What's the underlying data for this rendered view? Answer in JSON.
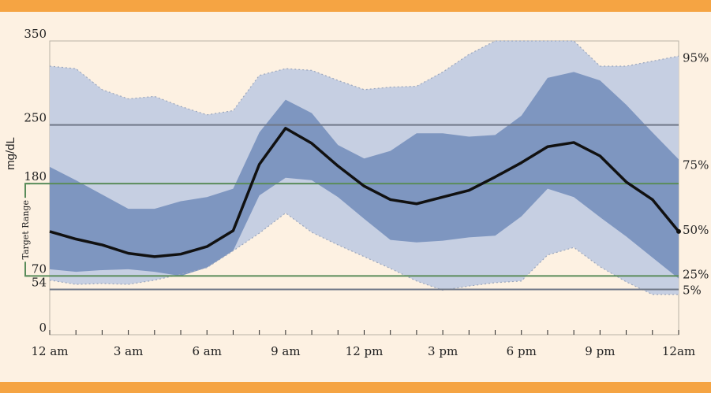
{
  "chart_data": {
    "type": "area",
    "ylabel": "mg/dL",
    "ylim": [
      0,
      350
    ],
    "x": [
      0,
      1,
      2,
      3,
      4,
      5,
      6,
      7,
      8,
      9,
      10,
      11,
      12,
      13,
      14,
      15,
      16,
      17,
      18,
      19,
      20,
      21,
      22,
      23,
      24
    ],
    "x_ticks": [
      {
        "x": 0,
        "label": "12 am"
      },
      {
        "x": 3,
        "label": "3 am"
      },
      {
        "x": 6,
        "label": "6 am"
      },
      {
        "x": 9,
        "label": "9 am"
      },
      {
        "x": 12,
        "label": "12 pm"
      },
      {
        "x": 15,
        "label": "3 pm"
      },
      {
        "x": 18,
        "label": "6 pm"
      },
      {
        "x": 21,
        "label": "9 pm"
      },
      {
        "x": 24,
        "label": "12am"
      }
    ],
    "y_ticks": [
      0,
      54,
      70,
      180,
      250,
      350
    ],
    "reference_lines": [
      {
        "y": 250,
        "color": "#707888"
      },
      {
        "y": 180,
        "color": "#5a8c5a"
      },
      {
        "y": 70,
        "color": "#5a8c5a"
      },
      {
        "y": 54,
        "color": "#707888"
      }
    ],
    "target_range": {
      "label": "Target Range",
      "low": 70,
      "high": 180
    },
    "percentile_labels": [
      {
        "label": "95%",
        "y": 330
      },
      {
        "label": "75%",
        "y": 202
      },
      {
        "label": "50%",
        "y": 125
      },
      {
        "label": "25%",
        "y": 72
      },
      {
        "label": "5%",
        "y": 53
      }
    ],
    "series": [
      {
        "name": "95%",
        "values": [
          320,
          317,
          292,
          281,
          284,
          272,
          262,
          267,
          309,
          317,
          315,
          303,
          292,
          295,
          296,
          313,
          334,
          350,
          350,
          350,
          350,
          320,
          320,
          326,
          332
        ]
      },
      {
        "name": "75%",
        "values": [
          200,
          184,
          167,
          150,
          150,
          159,
          164,
          174,
          241,
          280,
          264,
          226,
          210,
          219,
          240,
          240,
          236,
          238,
          261,
          306,
          313,
          303,
          274,
          241,
          209
        ]
      },
      {
        "name": "50%",
        "values": [
          123,
          114,
          107,
          97,
          93,
          96,
          105,
          124,
          203,
          246,
          228,
          201,
          177,
          161,
          156,
          164,
          172,
          188,
          205,
          224,
          229,
          213,
          182,
          161,
          123
        ]
      },
      {
        "name": "25%",
        "values": [
          78,
          75,
          77,
          78,
          75,
          70,
          80,
          100,
          166,
          187,
          184,
          164,
          138,
          113,
          110,
          112,
          116,
          118,
          141,
          174,
          164,
          140,
          117,
          92,
          67
        ]
      },
      {
        "name": "5%",
        "values": [
          65,
          60,
          61,
          60,
          65,
          72,
          80,
          100,
          121,
          145,
          122,
          107,
          93,
          79,
          64,
          53,
          58,
          62,
          64,
          95,
          104,
          81,
          63,
          48,
          48
        ]
      }
    ],
    "colors": {
      "outer_band": "#c6cfe2",
      "inner_band": "#7e96c0",
      "median_line": "#111111",
      "target_lines": "#5a8c5a",
      "reference_lines": "#707888",
      "top_bottom_band": "#f5a443",
      "background": "#fdf1e2"
    }
  }
}
